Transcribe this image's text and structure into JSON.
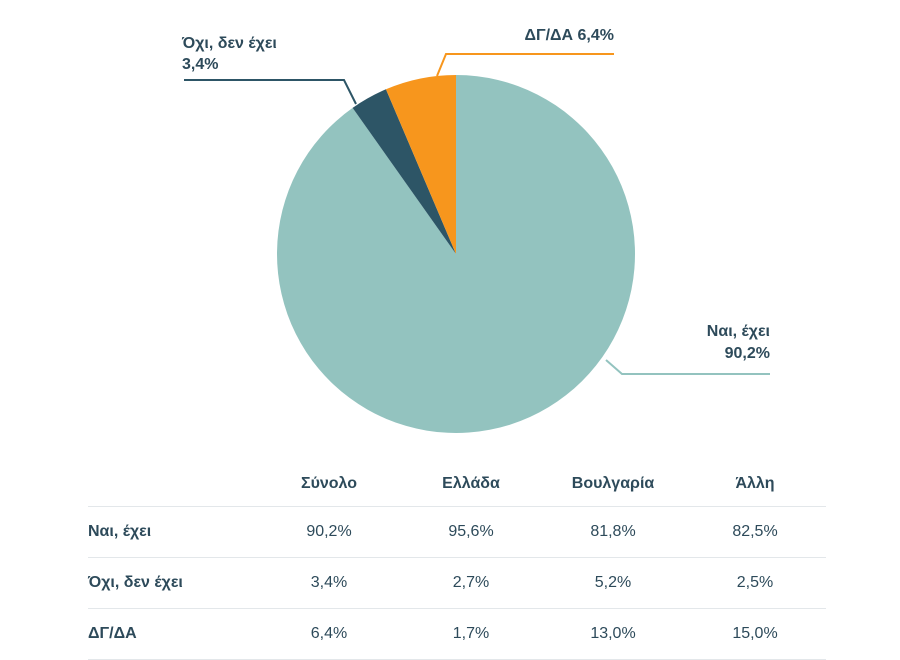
{
  "chart_data": {
    "type": "pie",
    "slices": [
      {
        "label": "Ναι, έχει",
        "value": 90.2,
        "value_label": "90,2%",
        "color": "#93c3bf"
      },
      {
        "label": "Όχι, δεν έχει",
        "value": 3.4,
        "value_label": "3,4%",
        "color": "#2d5566"
      },
      {
        "label": "ΔΓ/ΔΑ",
        "value": 6.4,
        "value_label": "6,4%",
        "color": "#f7961d"
      }
    ],
    "label_color": "#2d4a5a"
  },
  "table": {
    "columns": [
      "Σύνολο",
      "Ελλάδα",
      "Βουλγαρία",
      "Άλλη"
    ],
    "rows": [
      {
        "label": "Ναι, έχει",
        "values": [
          "90,2%",
          "95,6%",
          "81,8%",
          "82,5%"
        ]
      },
      {
        "label": "Όχι, δεν έχει",
        "values": [
          "3,4%",
          "2,7%",
          "5,2%",
          "2,5%"
        ]
      },
      {
        "label": "ΔΓ/ΔΑ",
        "values": [
          "6,4%",
          "1,7%",
          "13,0%",
          "15,0%"
        ]
      }
    ]
  }
}
